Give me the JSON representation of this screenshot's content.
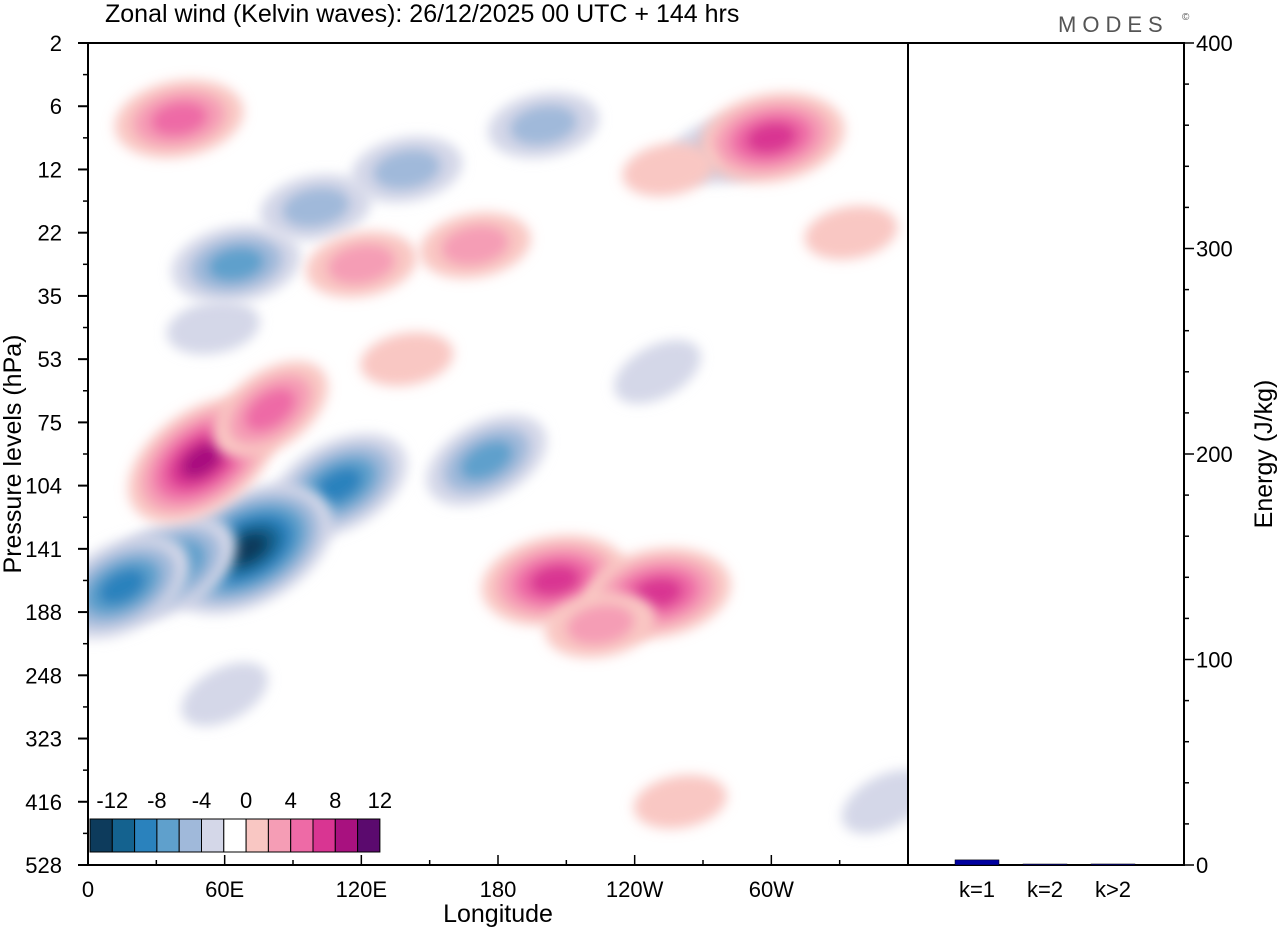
{
  "title": "Zonal wind (Kelvin waves):  26/12/2025  00 UTC  + 144 hrs",
  "logo": "MODES",
  "logo_mark": "©",
  "chart_data": [
    {
      "type": "heatmap",
      "name": "hovmoller",
      "title": "Zonal wind (Kelvin waves):  26/12/2025  00 UTC  + 144 hrs",
      "xlabel": "Longitude",
      "ylabel": "Pressure levels (hPa)",
      "x_ticks": [
        {
          "lon": 0,
          "label": "0"
        },
        {
          "lon": 60,
          "label": "60E"
        },
        {
          "lon": 120,
          "label": "120E"
        },
        {
          "lon": 180,
          "label": "180"
        },
        {
          "lon": 240,
          "label": "120W"
        },
        {
          "lon": 300,
          "label": "60W"
        }
      ],
      "x_range": [
        0,
        360
      ],
      "y_levels": [
        "2",
        "6",
        "12",
        "22",
        "35",
        "53",
        "75",
        "104",
        "141",
        "188",
        "248",
        "323",
        "416",
        "528"
      ],
      "colorbar": {
        "labels": [
          "-12",
          "-8",
          "-4",
          "0",
          "4",
          "8",
          "12"
        ],
        "bins": [
          {
            "from": -14,
            "to": -12,
            "color": "#0d3b5c"
          },
          {
            "from": -12,
            "to": -10,
            "color": "#14628f"
          },
          {
            "from": -10,
            "to": -8,
            "color": "#2a82bd"
          },
          {
            "from": -8,
            "to": -6,
            "color": "#5fa0cc"
          },
          {
            "from": -6,
            "to": -4,
            "color": "#a0b9da"
          },
          {
            "from": -4,
            "to": -2,
            "color": "#d4d7e8"
          },
          {
            "from": -2,
            "to": 2,
            "color": "#ffffff"
          },
          {
            "from": 2,
            "to": 4,
            "color": "#f9c7c3"
          },
          {
            "from": 4,
            "to": 6,
            "color": "#f59db5"
          },
          {
            "from": 6,
            "to": 8,
            "color": "#ee6aa6"
          },
          {
            "from": 8,
            "to": 10,
            "color": "#d93592"
          },
          {
            "from": 10,
            "to": 12,
            "color": "#a8117f"
          },
          {
            "from": 12,
            "to": 14,
            "color": "#5b0a6e"
          }
        ]
      },
      "features": [
        {
          "id": "neg-1",
          "lon": 55,
          "level": 4.5,
          "value": -4
        },
        {
          "id": "neg-2",
          "lon": 65,
          "level": 3.5,
          "value": -7
        },
        {
          "id": "neg-3",
          "lon": 100,
          "level": 2.6,
          "value": -6
        },
        {
          "id": "neg-4",
          "lon": 140,
          "level": 2.0,
          "value": -6
        },
        {
          "id": "neg-5",
          "lon": 200,
          "level": 1.3,
          "value": -6
        },
        {
          "id": "neg-6",
          "lon": 280,
          "level": 1.7,
          "value": -5
        },
        {
          "id": "neg-7",
          "lon": 175,
          "level": 6.6,
          "value": -7
        },
        {
          "id": "neg-8",
          "lon": 110,
          "level": 7.0,
          "value": -9
        },
        {
          "id": "neg-9",
          "lon": 70,
          "level": 8.0,
          "value": -14
        },
        {
          "id": "neg-10",
          "lon": 35,
          "level": 8.3,
          "value": -10
        },
        {
          "id": "neg-11",
          "lon": 15,
          "level": 8.6,
          "value": -10
        },
        {
          "id": "neg-12",
          "lon": 60,
          "level": 10.3,
          "value": -4
        },
        {
          "id": "neg-13",
          "lon": 250,
          "level": 5.2,
          "value": -3
        },
        {
          "id": "neg-14",
          "lon": 350,
          "level": 12.0,
          "value": -3
        },
        {
          "id": "pos-1",
          "lon": 50,
          "level": 6.6,
          "value": 11
        },
        {
          "id": "pos-2",
          "lon": 80,
          "level": 5.8,
          "value": 8
        },
        {
          "id": "pos-3",
          "lon": 40,
          "level": 1.2,
          "value": 8
        },
        {
          "id": "pos-4",
          "lon": 120,
          "level": 3.5,
          "value": 6
        },
        {
          "id": "pos-5",
          "lon": 170,
          "level": 3.2,
          "value": 6
        },
        {
          "id": "pos-6",
          "lon": 205,
          "level": 8.5,
          "value": 9
        },
        {
          "id": "pos-7",
          "lon": 250,
          "level": 8.7,
          "value": 9
        },
        {
          "id": "pos-8",
          "lon": 225,
          "level": 9.2,
          "value": 5
        },
        {
          "id": "pos-9",
          "lon": 300,
          "level": 1.5,
          "value": 9
        },
        {
          "id": "pos-10",
          "lon": 255,
          "level": 2.0,
          "value": 3
        },
        {
          "id": "pos-11",
          "lon": 260,
          "level": 12.0,
          "value": 3
        },
        {
          "id": "pos-12",
          "lon": 335,
          "level": 3.0,
          "value": 3
        },
        {
          "id": "pos-13",
          "lon": 140,
          "level": 5.0,
          "value": 3
        }
      ]
    },
    {
      "type": "bar",
      "name": "energy",
      "categories": [
        "k=1",
        "k=2",
        "k>2"
      ],
      "values": [
        2.5,
        0.3,
        0.5
      ],
      "ylabel": "Energy (J/kg)",
      "ylim": [
        0,
        400
      ],
      "y_ticks": [
        0,
        100,
        200,
        300,
        400
      ],
      "bar_color": "#0000a0"
    }
  ]
}
